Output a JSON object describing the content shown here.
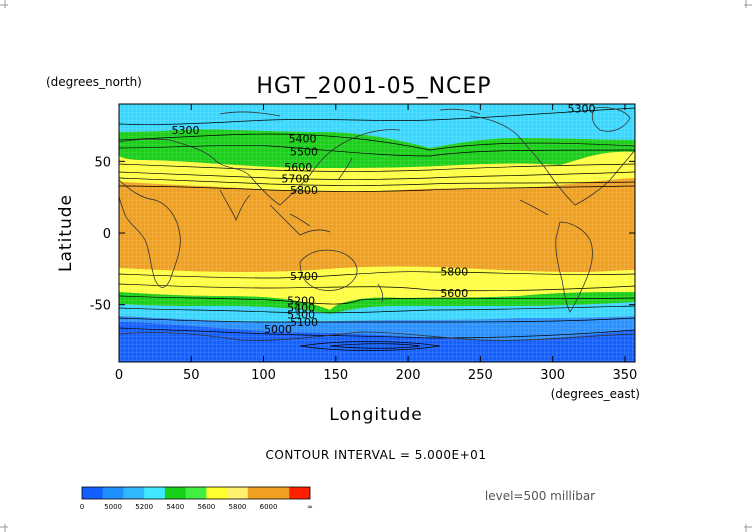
{
  "chart_data": {
    "type": "contour-map",
    "title": "HGT_2001-05_NCEP",
    "xlabel": "Longitude",
    "ylabel": "Latitude",
    "x_units": "(degrees_east)",
    "y_units": "(degrees_north)",
    "xlim": [
      0,
      357
    ],
    "ylim": [
      -90,
      90
    ],
    "x_ticks": [
      0,
      50,
      100,
      150,
      200,
      250,
      300,
      350
    ],
    "y_ticks": [
      50,
      0,
      -50
    ],
    "contour_interval_text": "CONTOUR INTERVAL = 5.000E+01",
    "level_text": "level=500 millibar",
    "contour_labels": [
      {
        "text": "5300",
        "lon": 46,
        "lat": 72
      },
      {
        "text": "5300",
        "lon": 320,
        "lat": 87
      },
      {
        "text": "5400",
        "lon": 127,
        "lat": 66
      },
      {
        "text": "5500",
        "lon": 128,
        "lat": 57
      },
      {
        "text": "5600",
        "lon": 124,
        "lat": 46
      },
      {
        "text": "5700",
        "lon": 122,
        "lat": 38
      },
      {
        "text": "5800",
        "lon": 128,
        "lat": 30
      },
      {
        "text": "5700",
        "lon": 128,
        "lat": -30
      },
      {
        "text": "5800",
        "lon": 232,
        "lat": -27
      },
      {
        "text": "5600",
        "lon": 232,
        "lat": -42
      },
      {
        "text": "5200",
        "lon": 126,
        "lat": -47
      },
      {
        "text": "5400",
        "lon": 126,
        "lat": -52
      },
      {
        "text": "5300",
        "lon": 126,
        "lat": -57
      },
      {
        "text": "5100",
        "lon": 128,
        "lat": -62
      },
      {
        "text": "5000",
        "lon": 110,
        "lat": -67
      }
    ],
    "colorbar": {
      "colors": [
        "#1460ff",
        "#2090ff",
        "#30b8ff",
        "#40e8ff",
        "#18d018",
        "#40f040",
        "#ffff30",
        "#fff070",
        "#f0a020",
        "#f0a020",
        "#ff2000"
      ],
      "tick_labels": [
        "0",
        "5000",
        "5200",
        "5400",
        "5600",
        "5800",
        "6000",
        "∞"
      ]
    },
    "bands": [
      {
        "name": "blue-deep",
        "color": "#1460ff"
      },
      {
        "name": "blue",
        "color": "#2890ff"
      },
      {
        "name": "cyan",
        "color": "#38d8ff"
      },
      {
        "name": "green",
        "color": "#18d018"
      },
      {
        "name": "yellow",
        "color": "#ffff40"
      },
      {
        "name": "orange",
        "color": "#f0a020"
      }
    ]
  }
}
